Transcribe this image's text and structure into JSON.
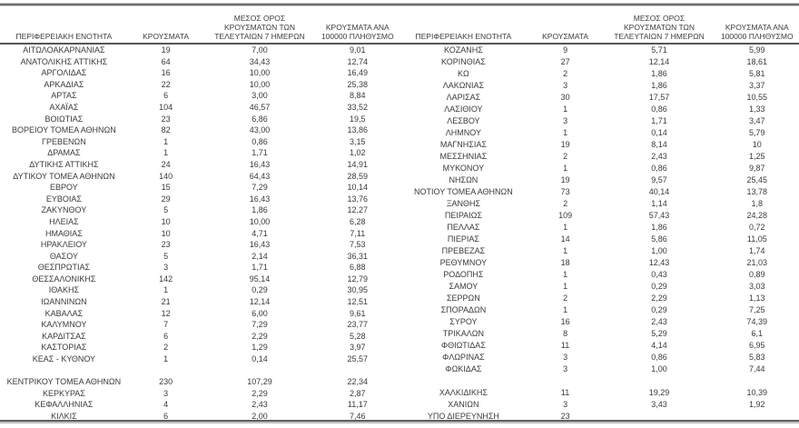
{
  "table": {
    "header": {
      "region": "ΠΕΡΙΦΕΡΕΙΑΚΗ ΕΝΟΤΗΤΑ",
      "cases": "ΚΡΟΥΣΜΑΤΑ",
      "avg7": "ΜΕΣΟΣ ΟΡΟΣ\nΚΡΟΥΣΜΑΤΩΝ ΤΩΝ\nΤΕΛΕΥΤΑΙΩΝ 7 ΗΜΕΡΩΝ",
      "per100k": "ΚΡΟΥΣΜΑΤΑ ΑΝΑ\n100000 ΠΛΗΘΥΣΜΟ"
    },
    "left_rows": [
      [
        "ΑΙΤΩΛΟΑΚΑΡΝΑΝΙΑΣ",
        "19",
        "7,00",
        "9,01"
      ],
      [
        "ΑΝΑΤΟΛΙΚΗΣ ΑΤΤΙΚΗΣ",
        "64",
        "34,43",
        "12,74"
      ],
      [
        "ΑΡΓΟΛΙΔΑΣ",
        "16",
        "10,00",
        "16,49"
      ],
      [
        "ΑΡΚΑΔΙΑΣ",
        "22",
        "10,00",
        "25,38"
      ],
      [
        "ΑΡΤΑΣ",
        "6",
        "3,00",
        "8,84"
      ],
      [
        "ΑΧΑΪΑΣ",
        "104",
        "46,57",
        "33,52"
      ],
      [
        "ΒΟΙΩΤΙΑΣ",
        "23",
        "6,86",
        "19,5"
      ],
      [
        "ΒΟΡΕΙΟΥ ΤΟΜΕΑ ΑΘΗΝΩΝ",
        "82",
        "43,00",
        "13,86"
      ],
      [
        "ΓΡΕΒΕΝΩΝ",
        "1",
        "0,86",
        "3,15"
      ],
      [
        "ΔΡΑΜΑΣ",
        "1",
        "1,71",
        "1,02"
      ],
      [
        "ΔΥΤΙΚΗΣ ΑΤΤΙΚΗΣ",
        "24",
        "16,43",
        "14,91"
      ],
      [
        "ΔΥΤΙΚΟΥ ΤΟΜΕΑ ΑΘΗΝΩΝ",
        "140",
        "64,43",
        "28,59"
      ],
      [
        "ΕΒΡΟΥ",
        "15",
        "7,29",
        "10,14"
      ],
      [
        "ΕΥΒΟΙΑΣ",
        "29",
        "16,43",
        "13,76"
      ],
      [
        "ΖΑΚΥΝΘΟΥ",
        "5",
        "1,86",
        "12,27"
      ],
      [
        "ΗΛΕΙΑΣ",
        "10",
        "10,00",
        "6,28"
      ],
      [
        "ΗΜΑΘΙΑΣ",
        "10",
        "4,71",
        "7,11"
      ],
      [
        "ΗΡΑΚΛΕΙΟΥ",
        "23",
        "16,43",
        "7,53"
      ],
      [
        "ΘΑΣΟΥ",
        "5",
        "2,14",
        "36,31"
      ],
      [
        "ΘΕΣΠΡΩΤΙΑΣ",
        "3",
        "1,71",
        "6,88"
      ],
      [
        "ΘΕΣΣΑΛΟΝΙΚΗΣ",
        "142",
        "95,14",
        "12,79"
      ],
      [
        "ΙΘΑΚΗΣ",
        "1",
        "0,29",
        "30,95"
      ],
      [
        "ΙΩΑΝΝΙΝΩΝ",
        "21",
        "12,14",
        "12,51"
      ],
      [
        "ΚΑΒΑΛΑΣ",
        "12",
        "6,00",
        "9,61"
      ],
      [
        "ΚΑΛΥΜΝΟΥ",
        "7",
        "7,29",
        "23,77"
      ],
      [
        "ΚΑΡΔΙΤΣΑΣ",
        "6",
        "2,29",
        "5,28"
      ],
      [
        "ΚΑΣΤΟΡΙΑΣ",
        "2",
        "1,29",
        "3,97"
      ],
      [
        "ΚΕΑΣ - ΚΥΘΝΟΥ",
        "1",
        "0,14",
        "25,57"
      ],
      [
        "",
        "",
        "",
        ""
      ],
      [
        "ΚΕΝΤΡΙΚΟΥ ΤΟΜΕΑ ΑΘΗΝΩΝ",
        "230",
        "107,29",
        "22,34"
      ],
      [
        "ΚΕΡΚΥΡΑΣ",
        "3",
        "2,29",
        "2,87"
      ],
      [
        "ΚΕΦΑΛΛΗΝΙΑΣ",
        "4",
        "2,43",
        "11,17"
      ],
      [
        "ΚΙΛΚΙΣ",
        "6",
        "2,00",
        "7,46"
      ]
    ],
    "right_rows": [
      [
        "ΚΟΖΑΝΗΣ",
        "9",
        "5,71",
        "5,99"
      ],
      [
        "ΚΟΡΙΝΘΙΑΣ",
        "27",
        "12,14",
        "18,61"
      ],
      [
        "ΚΩ",
        "2",
        "1,86",
        "5,81"
      ],
      [
        "ΛΑΚΩΝΙΑΣ",
        "3",
        "1,86",
        "3,37"
      ],
      [
        "ΛΑΡΙΣΑΣ",
        "30",
        "17,57",
        "10,55"
      ],
      [
        "ΛΑΣΙΘΙΟΥ",
        "1",
        "0,86",
        "1,33"
      ],
      [
        "ΛΕΣΒΟΥ",
        "3",
        "1,71",
        "3,47"
      ],
      [
        "ΛΗΜΝΟΥ",
        "1",
        "0,14",
        "5,79"
      ],
      [
        "ΜΑΓΝΗΣΙΑΣ",
        "19",
        "8,14",
        "10"
      ],
      [
        "ΜΕΣΣΗΝΙΑΣ",
        "2",
        "2,43",
        "1,25"
      ],
      [
        "ΜΥΚΟΝΟΥ",
        "1",
        "0,86",
        "9,87"
      ],
      [
        "ΝΗΣΩΝ",
        "19",
        "9,57",
        "25,45"
      ],
      [
        "ΝΟΤΙΟΥ ΤΟΜΕΑ ΑΘΗΝΩΝ",
        "73",
        "40,14",
        "13,78"
      ],
      [
        "ΞΑΝΘΗΣ",
        "2",
        "1,14",
        "1,8"
      ],
      [
        "ΠΕΙΡΑΙΩΣ",
        "109",
        "57,43",
        "24,28"
      ],
      [
        "ΠΕΛΛΑΣ",
        "1",
        "1,86",
        "0,72"
      ],
      [
        "ΠΙΕΡΙΑΣ",
        "14",
        "5,86",
        "11,05"
      ],
      [
        "ΠΡΕΒΕΖΑΣ",
        "1",
        "1,00",
        "1,74"
      ],
      [
        "ΡΕΘΥΜΝΟΥ",
        "18",
        "12,43",
        "21,03"
      ],
      [
        "ΡΟΔΟΠΗΣ",
        "1",
        "0,43",
        "0,89"
      ],
      [
        "ΣΑΜΟΥ",
        "1",
        "0,29",
        "3,03"
      ],
      [
        "ΣΕΡΡΩΝ",
        "2",
        "2,29",
        "1,13"
      ],
      [
        "ΣΠΟΡΑΔΩΝ",
        "1",
        "0,29",
        "7,25"
      ],
      [
        "ΣΥΡΟΥ",
        "16",
        "2,43",
        "74,39"
      ],
      [
        "ΤΡΙΚΑΛΩΝ",
        "8",
        "5,29",
        "6,1"
      ],
      [
        "ΦΘΙΩΤΙΔΑΣ",
        "11",
        "4,14",
        "6,95"
      ],
      [
        "ΦΛΩΡΙΝΑΣ",
        "3",
        "0,86",
        "5,83"
      ],
      [
        "ΦΩΚΙΔΑΣ",
        "3",
        "1,00",
        "7,44"
      ],
      [
        "",
        "",
        "",
        ""
      ],
      [
        "ΧΑΛΚΙΔΙΚΗΣ",
        "11",
        "19,29",
        "10,39"
      ],
      [
        "ΧΑΝΙΩΝ",
        "3",
        "3,43",
        "1,92"
      ],
      [
        "ΥΠΟ ΔΙΕΡΕΥΝΗΣΗ",
        "23",
        "",
        ""
      ]
    ]
  }
}
